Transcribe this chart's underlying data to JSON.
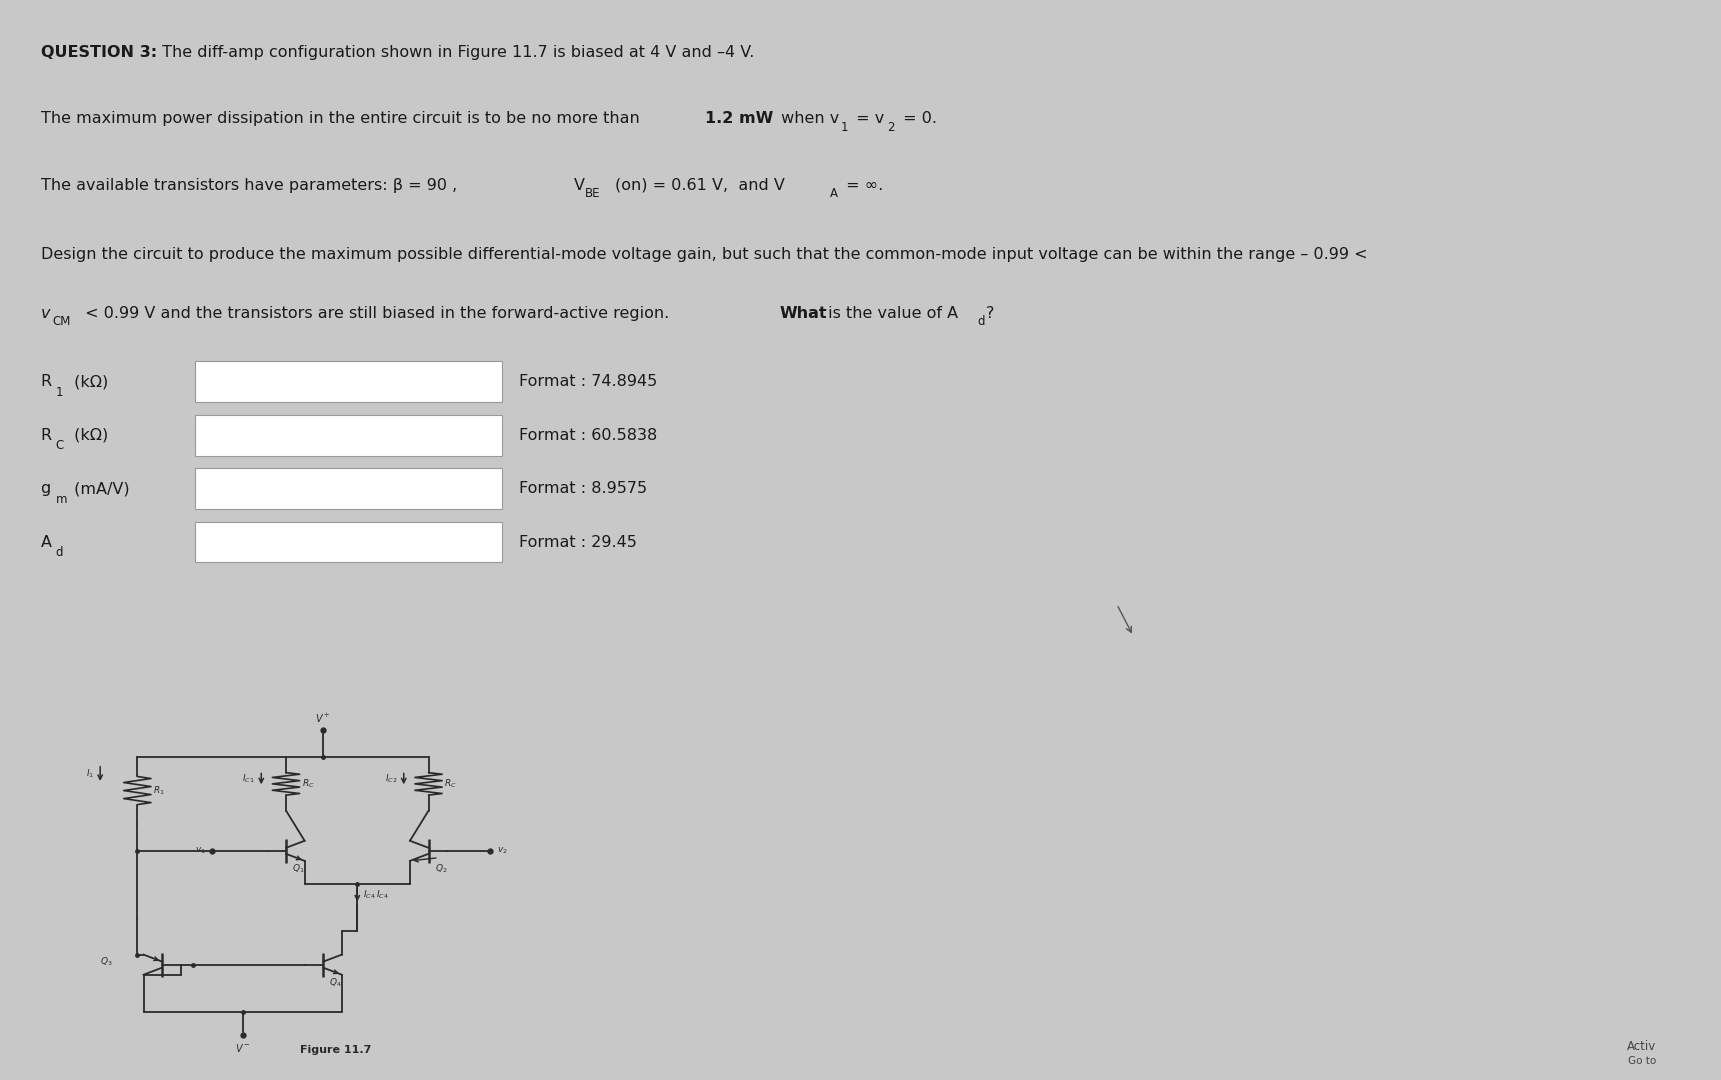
{
  "bg_color": "#c8c8c8",
  "paper_color": "#eeeeee",
  "text_color": "#1a1a1a",
  "box_fill": "#ffffff",
  "box_edge": "#999999",
  "circuit_color": "#2a2a2a",
  "title_bold": "QUESTION 3:",
  "title_rest": " The diff-amp configuration shown in Figure 11.7 is biased at 4 V and –4 V.",
  "line2_pre": "The maximum power dissipation in the entire circuit is to be no more than ",
  "line2_bold": "1.2 mW",
  "line2_post": " when v",
  "line2_sub1": "1",
  "line2_mid": " = v",
  "line2_sub2": "2",
  "line2_end": " = 0.",
  "line3_pre": "The available transistors have parameters: β = 90 , ",
  "line3_vbe": "V",
  "line3_vbe_sub": "BE",
  "line3_vbe_post": "(on) = 0.61 V,  and V",
  "line3_va_sub": "A",
  "line3_va_post": " = ∞.",
  "line4": "Design the circuit to produce the maximum possible differential-mode voltage gain, but such that the common-mode input voltage can be within the range – 0.99 <",
  "line5_pre": "v",
  "line5_cm": "CM",
  "line5_post": " < 0.99 V and the transistors are still biased in the forward-active region. ",
  "line5_what": "What",
  "line5_end": " is the value of A",
  "line5_sub": "d",
  "line5_q": "?",
  "rows": [
    {
      "label": "R",
      "label_sub": "1",
      "label_post": " (kΩ)",
      "format": "74.8945"
    },
    {
      "label": "R",
      "label_sub": "C",
      "label_post": " (kΩ)",
      "format": "60.5838"
    },
    {
      "label": "g",
      "label_sub": "m",
      "label_post": " (mA/V)",
      "format": "8.9575"
    },
    {
      "label": "A",
      "label_sub": "d",
      "label_post": "",
      "format": "29.45"
    }
  ],
  "fig_caption": "Figure 11.7",
  "watermark": "Activ",
  "watermark2": "Go to"
}
